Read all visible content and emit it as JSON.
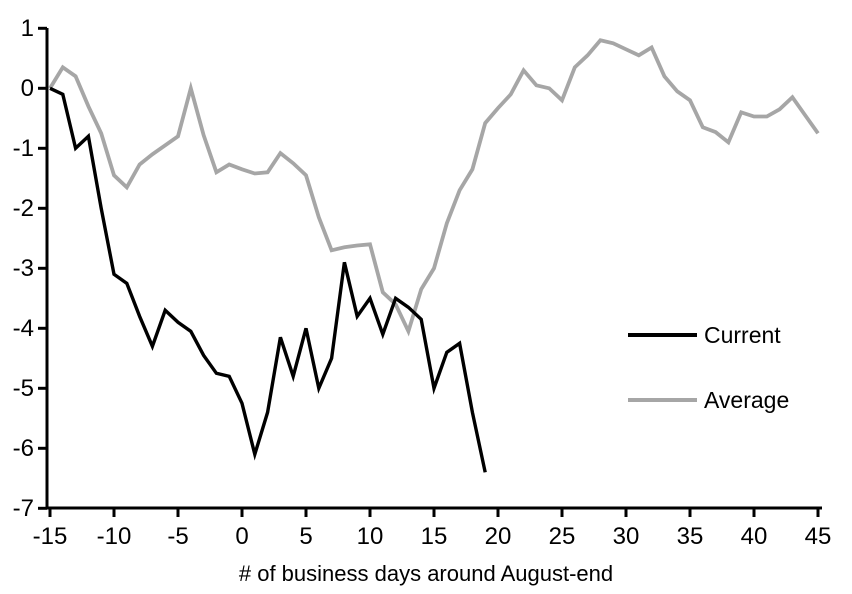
{
  "chart_data": {
    "type": "line",
    "title": "",
    "xlabel": "# of business days around August-end",
    "ylabel": "",
    "xlim": [
      -15,
      45
    ],
    "ylim": [
      -7,
      1
    ],
    "x_ticks": [
      -15,
      -10,
      -5,
      0,
      5,
      10,
      15,
      20,
      25,
      30,
      35,
      40,
      45
    ],
    "y_ticks": [
      1,
      0,
      -1,
      -2,
      -3,
      -4,
      -5,
      -6,
      -7
    ],
    "grid": false,
    "legend_position": "right-middle",
    "x": [
      -15,
      -14,
      -13,
      -12,
      -11,
      -10,
      -9,
      -8,
      -7,
      -6,
      -5,
      -4,
      -3,
      -2,
      -1,
      0,
      1,
      2,
      3,
      4,
      5,
      6,
      7,
      8,
      9,
      10,
      11,
      12,
      13,
      14,
      15,
      16,
      17,
      18,
      19,
      20,
      21,
      22,
      23,
      24,
      25,
      26,
      27,
      28,
      29,
      30,
      31,
      32,
      33,
      34,
      35,
      36,
      37,
      38,
      39,
      40,
      41,
      42,
      43,
      44,
      45
    ],
    "series": [
      {
        "name": "Current",
        "color": "#000000",
        "stroke_width": 3.4,
        "values": [
          0,
          -0.1,
          -1.0,
          -0.8,
          -2.0,
          -3.1,
          -3.25,
          -3.8,
          -4.3,
          -3.7,
          -3.9,
          -4.05,
          -4.45,
          -4.75,
          -4.8,
          -5.25,
          -6.1,
          -5.4,
          -4.15,
          -4.8,
          -4.0,
          -5.0,
          -4.5,
          -2.9,
          -3.8,
          -3.5,
          -4.1,
          -3.5,
          -3.65,
          -3.85,
          -5.0,
          -4.4,
          -4.25,
          -5.4,
          -6.4
        ]
      },
      {
        "name": "Average",
        "color": "#a6a6a6",
        "stroke_width": 3.8,
        "values": [
          0,
          0.35,
          0.2,
          -0.3,
          -0.75,
          -1.45,
          -1.65,
          -1.27,
          -1.1,
          -0.95,
          -0.8,
          0.0,
          -0.78,
          -1.4,
          -1.27,
          -1.35,
          -1.42,
          -1.4,
          -1.08,
          -1.25,
          -1.45,
          -2.15,
          -2.7,
          -2.65,
          -2.62,
          -2.6,
          -3.4,
          -3.6,
          -4.05,
          -3.35,
          -3.0,
          -2.25,
          -1.7,
          -1.35,
          -0.58,
          -0.33,
          -0.1,
          0.3,
          0.05,
          0.0,
          -0.2,
          0.35,
          0.55,
          0.8,
          0.75,
          0.65,
          0.55,
          0.68,
          0.2,
          -0.05,
          -0.2,
          -0.65,
          -0.73,
          -0.9,
          -0.4,
          -0.47,
          -0.47,
          -0.35,
          -0.15,
          -0.45,
          -0.75
        ]
      }
    ]
  },
  "legend": {
    "items": [
      {
        "label": "Current",
        "color": "#000000"
      },
      {
        "label": "Average",
        "color": "#a6a6a6"
      }
    ]
  },
  "colors": {
    "axis": "#000000",
    "background": "#ffffff",
    "current": "#000000",
    "average": "#a6a6a6"
  }
}
